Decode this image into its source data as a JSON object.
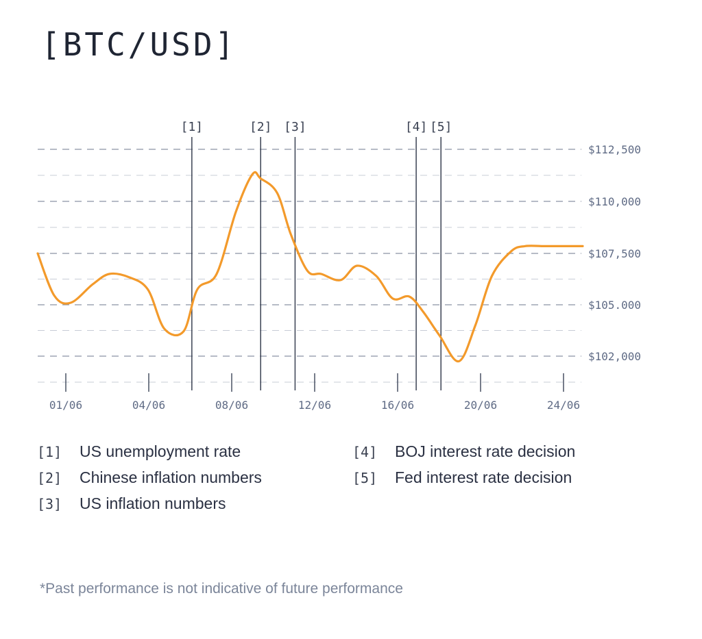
{
  "title": "[BTC/USD]",
  "chart_data": {
    "type": "line",
    "title": "[BTC/USD]",
    "xlabel": "",
    "ylabel": "",
    "x_ticks": [
      "01/06",
      "04/06",
      "08/06",
      "12/06",
      "16/06",
      "20/06",
      "24/06"
    ],
    "x_tick_days": [
      1,
      4,
      7,
      10,
      13,
      16,
      19
    ],
    "y_ticks": [
      112500,
      110000,
      107500,
      105000,
      102000
    ],
    "y_tick_labels": [
      "$112,500",
      "$110,000",
      "$107,500",
      "$105.000",
      "$102,000"
    ],
    "series": [
      {
        "name": "BTC/USD",
        "color": "#f39a2b",
        "x": [
          0,
          0.6,
          1.2,
          2.0,
          2.6,
          3.3,
          4.0,
          4.6,
          5.3,
          5.8,
          6.5,
          7.2,
          7.8,
          8.1,
          8.7,
          9.2,
          9.8,
          10.3,
          11.0,
          11.6,
          12.3,
          12.9,
          13.5,
          14.0,
          14.6,
          15.3,
          15.9,
          16.5,
          17.2,
          17.7,
          18.4,
          19.0,
          19.8
        ],
        "values": [
          107500,
          105450,
          105100,
          106000,
          106500,
          106350,
          105750,
          103600,
          103450,
          105750,
          106500,
          109500,
          111300,
          111100,
          110400,
          108400,
          106650,
          106500,
          106200,
          106900,
          106400,
          105300,
          105400,
          104600,
          103200,
          101700,
          103800,
          106400,
          107600,
          107850,
          107850,
          107850,
          107850
        ]
      }
    ],
    "events": [
      {
        "label": "[1]",
        "x": 5.6
      },
      {
        "label": "[2]",
        "x": 8.1
      },
      {
        "label": "[3]",
        "x": 9.35
      },
      {
        "label": "[4]",
        "x": 13.75
      },
      {
        "label": "[5]",
        "x": 14.65
      }
    ],
    "grid": true
  },
  "legend": [
    {
      "num": "[1]",
      "text": "US unemployment rate"
    },
    {
      "num": "[2]",
      "text": "Chinese inflation numbers"
    },
    {
      "num": "[3]",
      "text": "US inflation numbers"
    },
    {
      "num": "[4]",
      "text": "BOJ  interest rate decision"
    },
    {
      "num": "[5]",
      "text": "Fed interest rate decision"
    }
  ],
  "footnote": "*Past performance is not indicative of future performance"
}
